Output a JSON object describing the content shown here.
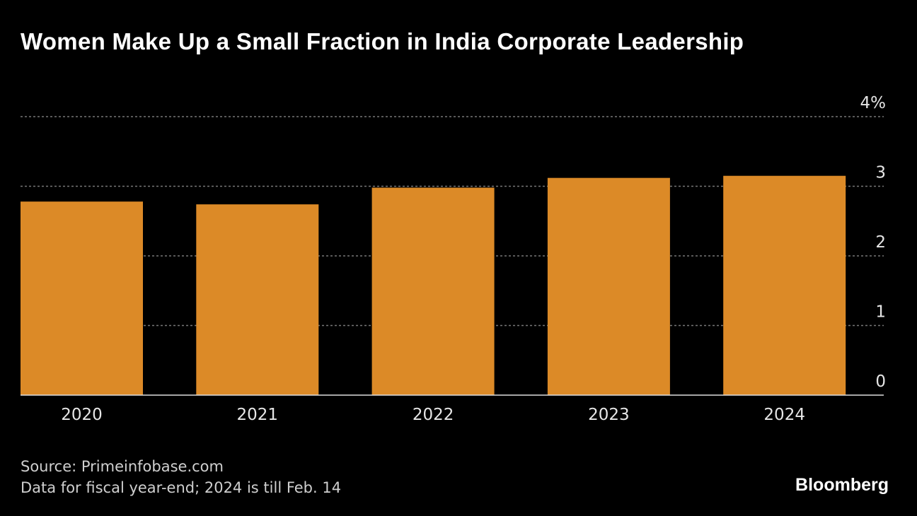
{
  "chart_data": {
    "type": "bar",
    "title": "Women Make Up a Small Fraction in India Corporate Leadership",
    "categories": [
      "2020",
      "2021",
      "2022",
      "2023",
      "2024"
    ],
    "values": [
      2.78,
      2.74,
      2.98,
      3.12,
      3.15
    ],
    "ylim": [
      0,
      4
    ],
    "yticks": [
      0,
      1,
      2,
      3,
      4
    ],
    "ytick_labels": [
      "0",
      "1",
      "2",
      "3",
      "4%"
    ],
    "y_axis_position": "right",
    "grid": true,
    "bar_color": "#dc8a27",
    "background": "#000000"
  },
  "footer": {
    "source": "Source: Primeinfobase.com",
    "note": "Data for fiscal year-end; 2024 is till Feb. 14",
    "brand": "Bloomberg"
  }
}
